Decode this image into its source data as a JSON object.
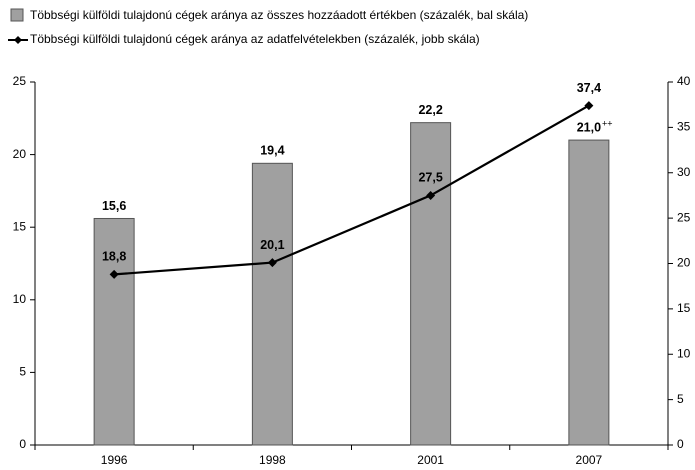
{
  "chart_data": {
    "type": "bar_line",
    "categories": [
      "1996",
      "1998",
      "2001",
      "2007"
    ],
    "series": [
      {
        "name": "Többségi külföldi tulajdonú cégek aránya az összes hozzáadott értékben (százalék, bal skála)",
        "type": "bar",
        "color": "#a0a0a0",
        "values": [
          15.6,
          19.4,
          22.2,
          21.0
        ],
        "value_labels": [
          "15,6",
          "19,4",
          "22,2",
          "21,0"
        ]
      },
      {
        "name": "Többségi külföldi tulajdonú cégek aránya az adatfelvételekben (százalék, jobb skála)",
        "type": "line",
        "axis": "y2",
        "color": "#000000",
        "values": [
          18.8,
          20.1,
          27.5,
          37.4
        ],
        "value_labels": [
          "18,8",
          "20,1",
          "27,5",
          "37,4"
        ]
      }
    ],
    "annotations": [
      "++"
    ],
    "ylim": [
      0,
      25
    ],
    "yticks": [
      0,
      5,
      10,
      15,
      20,
      25
    ],
    "y2lim": [
      0,
      40
    ],
    "y2ticks": [
      0,
      5,
      10,
      15,
      20,
      25,
      30,
      35,
      40
    ]
  }
}
